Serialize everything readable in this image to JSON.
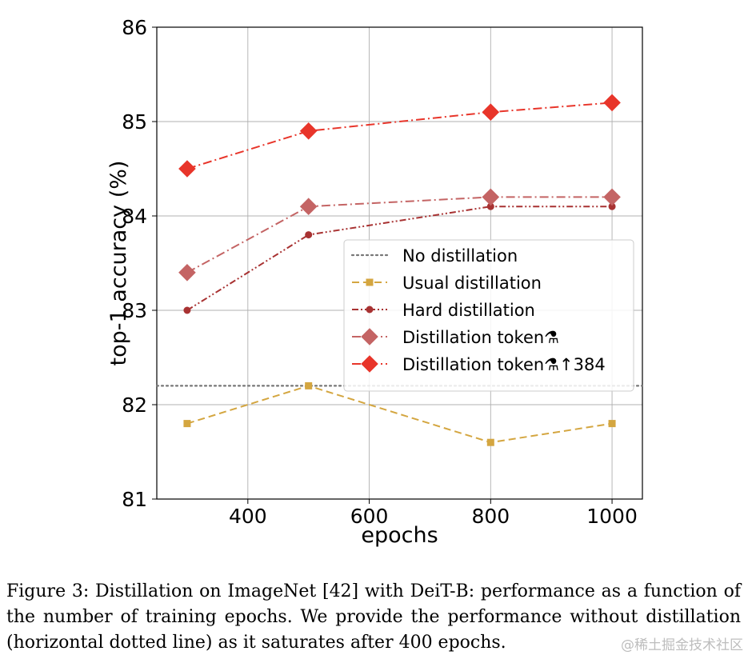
{
  "chart_data": {
    "type": "line",
    "xlabel": "epochs",
    "ylabel": "top-1 accuracy (%)",
    "xlim": [
      250,
      1050
    ],
    "ylim": [
      81,
      86
    ],
    "xticks": [
      400,
      600,
      800,
      1000
    ],
    "yticks": [
      81,
      82,
      83,
      84,
      85,
      86
    ],
    "grid": true,
    "legend_position": "center-right",
    "x": [
      300,
      500,
      800,
      1000
    ],
    "series": [
      {
        "name": "No distillation",
        "type": "hline",
        "y": 82.2,
        "color": "#777777",
        "style": "dotted",
        "marker": "none"
      },
      {
        "name": "Usual distillation",
        "values": [
          81.8,
          82.2,
          81.6,
          81.8
        ],
        "color": "#d4a640",
        "style": "dashed",
        "marker": "square"
      },
      {
        "name": "Hard distillation",
        "values": [
          83.0,
          83.8,
          84.1,
          84.1
        ],
        "color": "#a83232",
        "style": "dash-dot-dot",
        "marker": "circle"
      },
      {
        "name": "Distillation token⚗",
        "values": [
          83.4,
          84.1,
          84.2,
          84.2
        ],
        "color": "#c46464",
        "style": "dash-dot",
        "marker": "diamond"
      },
      {
        "name": "Distillation token⚗↑384",
        "values": [
          84.5,
          84.9,
          85.1,
          85.2
        ],
        "color": "#e8352a",
        "style": "dash-dot",
        "marker": "diamond"
      }
    ]
  },
  "caption": "Figure 3: Distillation on ImageNet [42] with DeiT-B: performance as a function of the number of training epochs. We provide the performance without distillation (horizontal dotted line) as it saturates after 400 epochs.",
  "watermark": "@稀土掘金技术社区"
}
